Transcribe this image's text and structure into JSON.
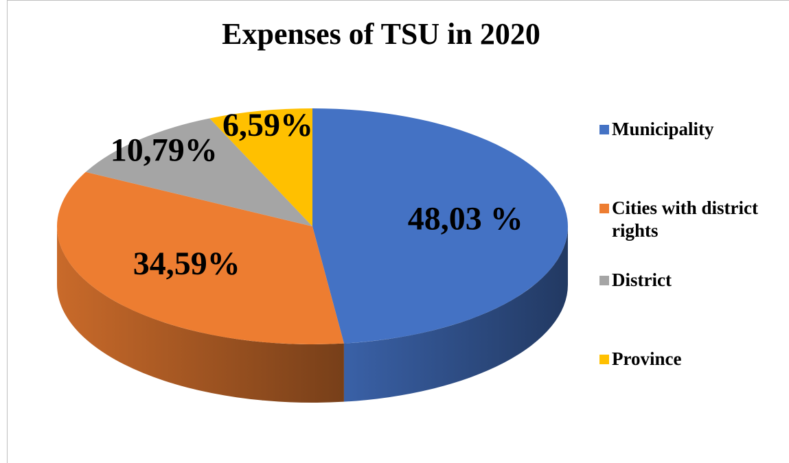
{
  "chart_data": {
    "type": "pie",
    "title": "Expenses of TSU in 2020",
    "categories": [
      "Municipality",
      "Cities with district rights",
      "District",
      "Province"
    ],
    "values": [
      48.03,
      34.59,
      10.79,
      6.59
    ],
    "value_labels": [
      "48,03 %",
      "34,59%",
      "10,79%",
      "6,59%"
    ],
    "colors": [
      "#4472c4",
      "#ed7d31",
      "#a5a5a5",
      "#ffc000"
    ],
    "legend": "right"
  }
}
